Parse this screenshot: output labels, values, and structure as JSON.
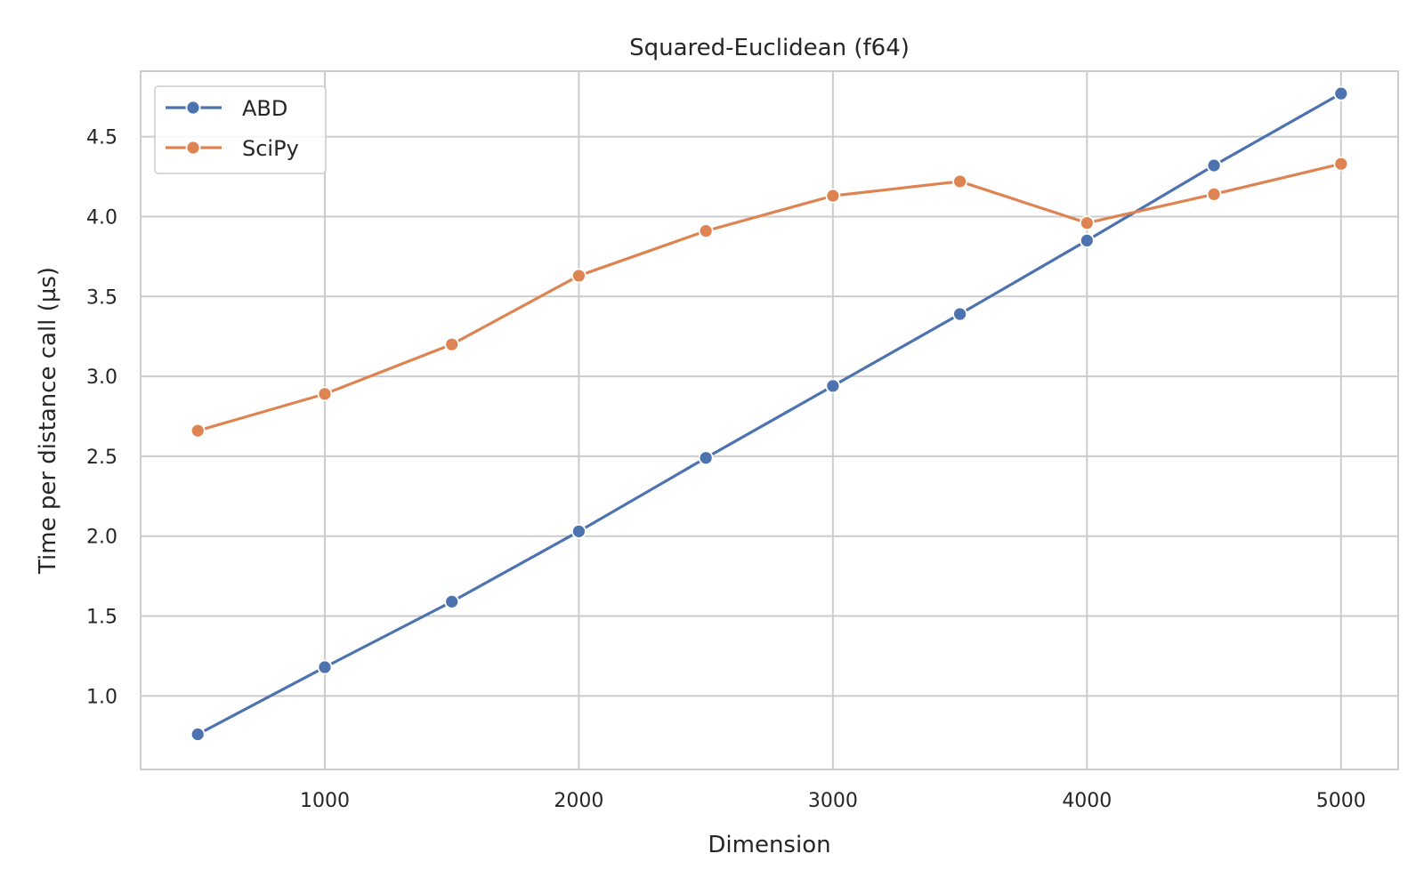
{
  "chart_data": {
    "type": "line",
    "title": "Squared-Euclidean (f64)",
    "xlabel": "Dimension",
    "ylabel": "Time per distance call (µs)",
    "x": [
      500,
      1000,
      1500,
      2000,
      2500,
      3000,
      3500,
      4000,
      4500,
      5000
    ],
    "xlim": [
      275,
      5225
    ],
    "ylim": [
      0.54,
      4.91
    ],
    "xticks": [
      1000,
      2000,
      3000,
      4000,
      5000
    ],
    "xtick_labels": [
      "1000",
      "2000",
      "3000",
      "4000",
      "5000"
    ],
    "yticks": [
      1.0,
      1.5,
      2.0,
      2.5,
      3.0,
      3.5,
      4.0,
      4.5
    ],
    "ytick_labels": [
      "1.0",
      "1.5",
      "2.0",
      "2.5",
      "3.0",
      "3.5",
      "4.0",
      "4.5"
    ],
    "grid": true,
    "legend_position": "top-left",
    "series": [
      {
        "name": "ABD",
        "color": "#4c72b0",
        "values": [
          0.76,
          1.18,
          1.59,
          2.03,
          2.49,
          2.94,
          3.39,
          3.85,
          4.32,
          4.77
        ]
      },
      {
        "name": "SciPy",
        "color": "#dd8452",
        "values": [
          2.66,
          2.89,
          3.2,
          3.63,
          3.91,
          4.13,
          4.22,
          3.96,
          4.14,
          4.33
        ]
      }
    ]
  }
}
